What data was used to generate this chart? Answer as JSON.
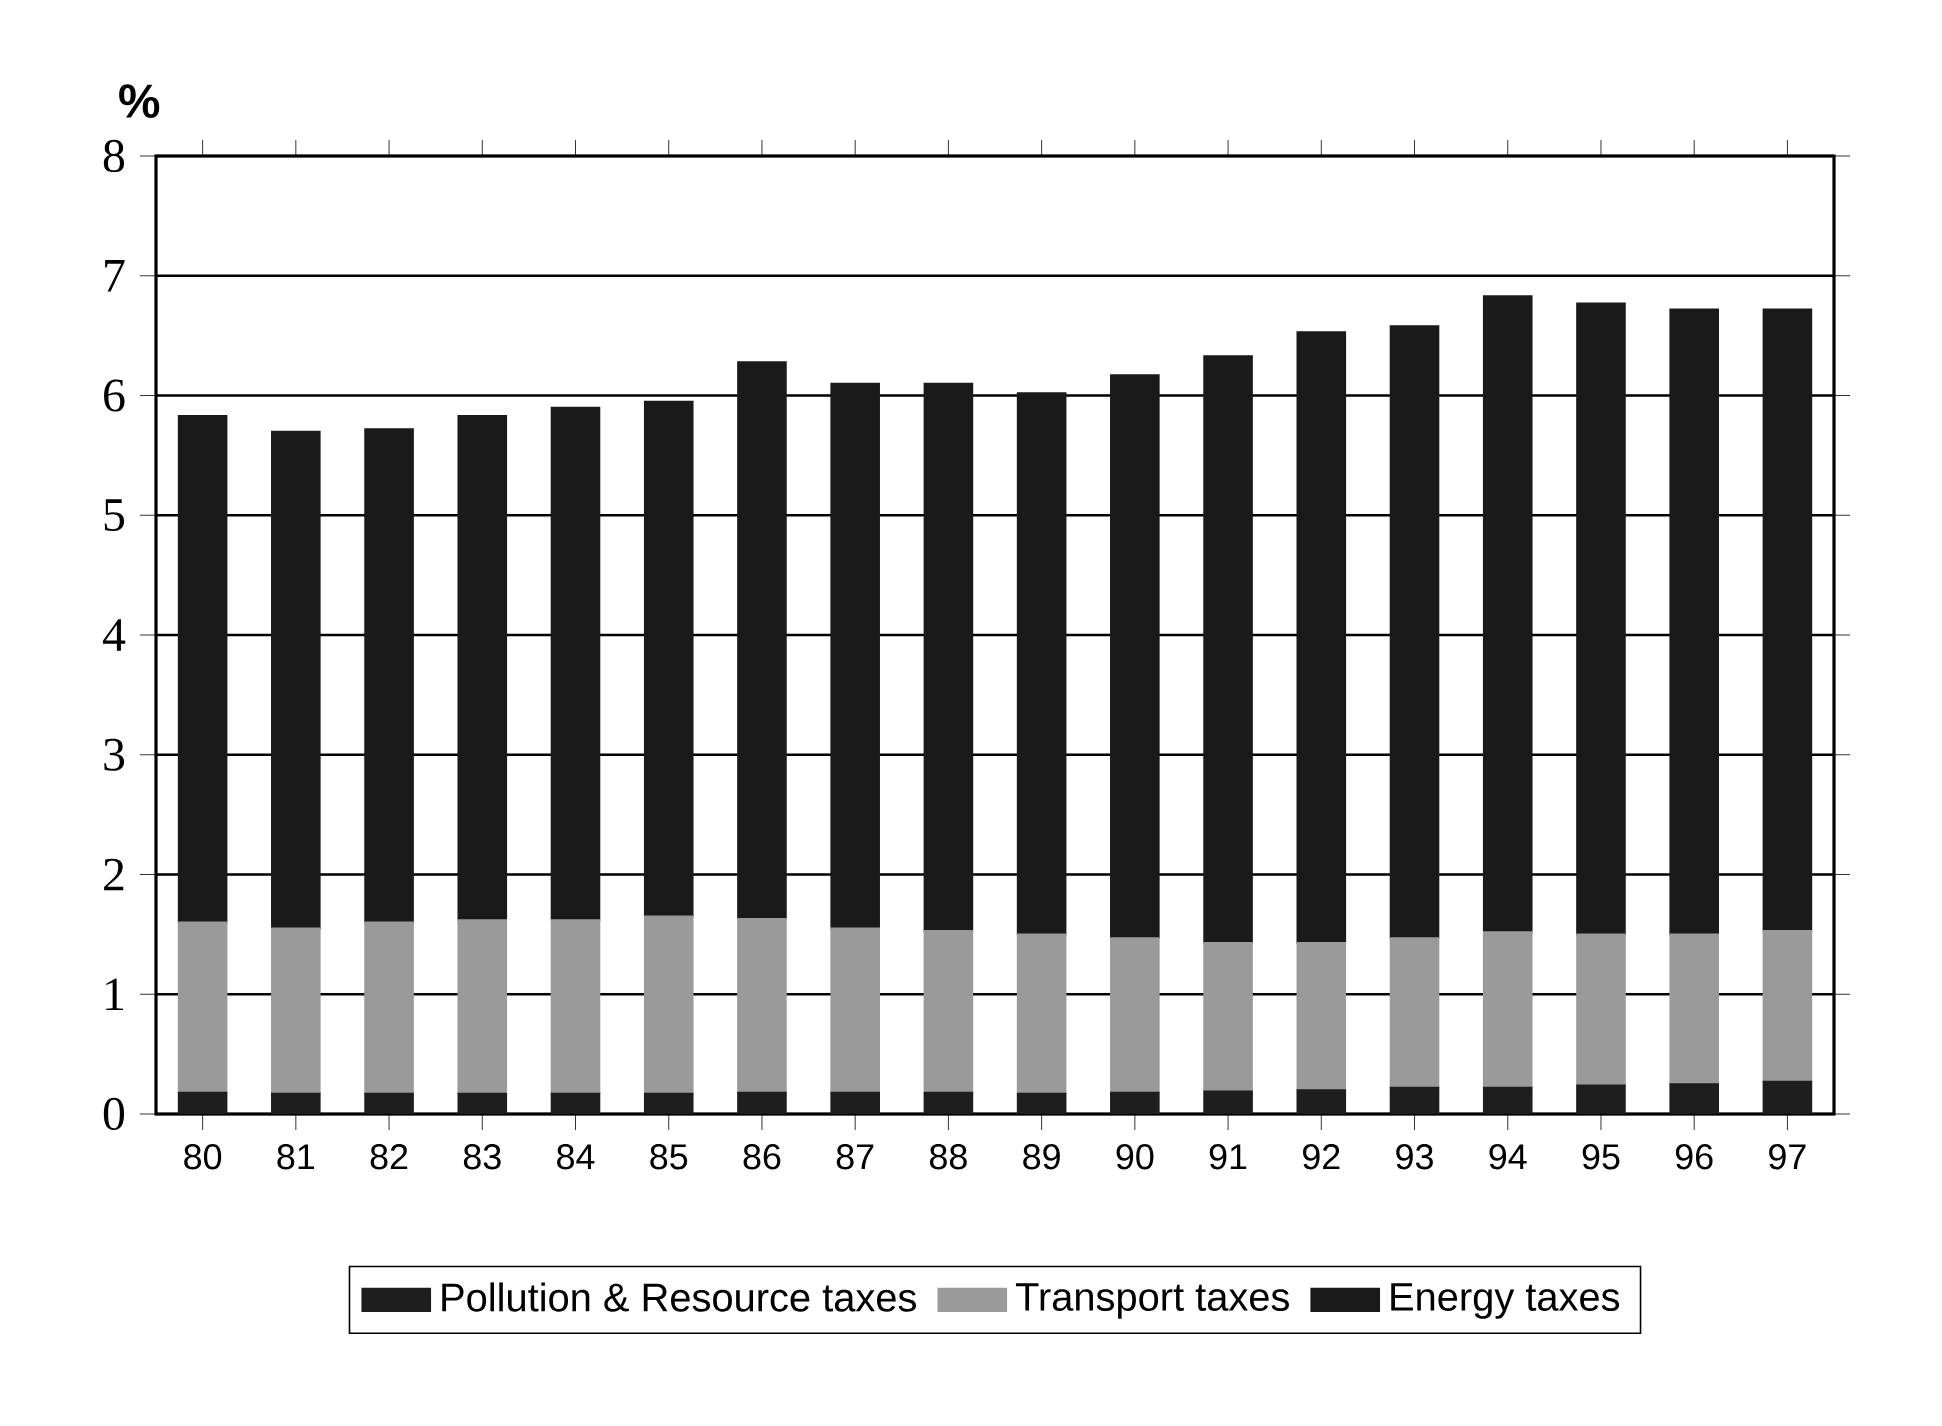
{
  "chart_data": {
    "type": "bar",
    "stacked": true,
    "ylabel": "%",
    "categories": [
      "80",
      "81",
      "82",
      "83",
      "84",
      "85",
      "86",
      "87",
      "88",
      "89",
      "90",
      "91",
      "92",
      "93",
      "94",
      "95",
      "96",
      "97"
    ],
    "series": [
      {
        "name": "Pollution & Resource taxes",
        "color": "#1e1e1e",
        "values": [
          0.18,
          0.17,
          0.17,
          0.17,
          0.17,
          0.17,
          0.18,
          0.18,
          0.18,
          0.17,
          0.18,
          0.19,
          0.2,
          0.22,
          0.22,
          0.24,
          0.25,
          0.27
        ]
      },
      {
        "name": "Transport taxes",
        "color": "#9a9a9a",
        "values": [
          1.42,
          1.38,
          1.43,
          1.45,
          1.45,
          1.48,
          1.45,
          1.37,
          1.35,
          1.33,
          1.29,
          1.24,
          1.23,
          1.25,
          1.3,
          1.26,
          1.25,
          1.26
        ]
      },
      {
        "name": "Energy taxes",
        "color": "#1a1a1a",
        "values": [
          4.23,
          4.15,
          4.12,
          4.21,
          4.28,
          4.3,
          4.65,
          4.55,
          4.57,
          4.52,
          4.7,
          4.9,
          5.1,
          5.11,
          5.31,
          5.27,
          5.22,
          5.19
        ]
      }
    ],
    "ylim": [
      0,
      8
    ],
    "yticks": [
      0,
      1,
      2,
      3,
      4,
      5,
      6,
      7,
      8
    ],
    "grid": "y",
    "legend": "bottom"
  }
}
